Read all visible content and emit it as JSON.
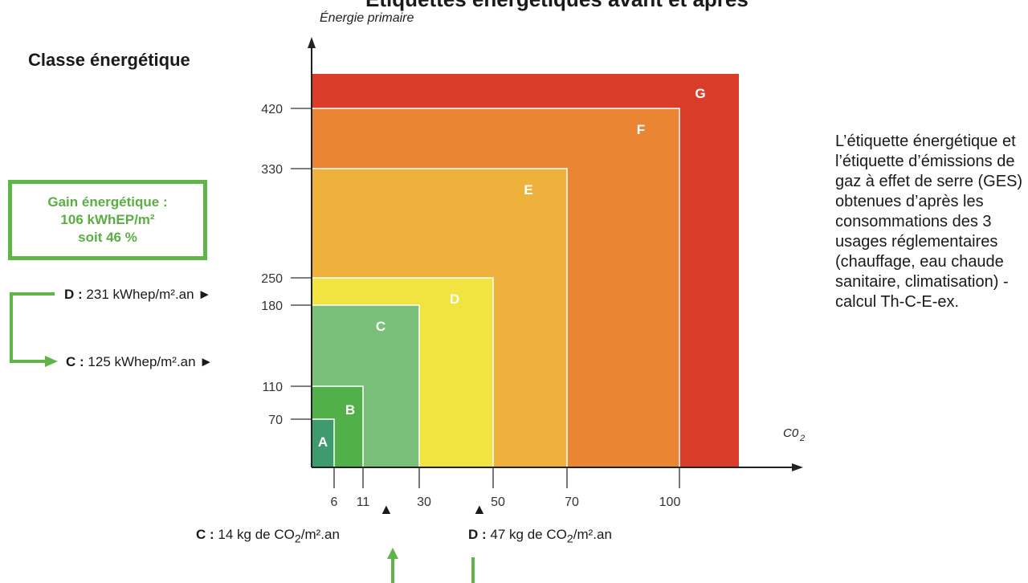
{
  "header": {
    "title_fragment": "Étiquettes énergétiques avant et après",
    "classe_label": "Classe énergétique"
  },
  "gain_box": {
    "line1": "Gain énergétique :",
    "line2": "106 kWhEP/m²",
    "line3": "soit 46 %"
  },
  "energy_before": {
    "class": "D :",
    "value": "231 kWhep/m².an ►"
  },
  "energy_after": {
    "class": "C :",
    "value": "125 kWhep/m².an ►"
  },
  "ges_after": {
    "class": "C :",
    "value_prefix": "14 kg de CO",
    "sub": "2",
    "value_suffix": "/m².an",
    "marker": "▲"
  },
  "ges_before": {
    "class": "D :",
    "value_prefix": "47 kg de CO",
    "sub": "2",
    "value_suffix": "/m².an",
    "marker": "▲"
  },
  "side_text": "L’étiquette énergétique et l’étiquette d’émissions de gaz à effet de serre (GES) obtenues d’après les consommations des 3 usages réglementaires (chauffage, eau chaude sanitaire, climatisation) - calcul Th-C-E-ex.",
  "colors": {
    "A": "#3f9a6d",
    "B": "#52b04a",
    "C": "#7bc07a",
    "D": "#f2e440",
    "E": "#eeb23c",
    "F": "#ea8533",
    "G": "#d93c28",
    "arrow_green": "#5fb548"
  },
  "chart_data": {
    "type": "nested-squares",
    "ylabel": "Énergie primaire",
    "xlabel": "CO2",
    "yticks": [
      70,
      110,
      180,
      250,
      330,
      420
    ],
    "xticks": [
      6,
      11,
      30,
      50,
      70,
      100
    ],
    "classes": [
      {
        "label": "A",
        "y_max": 70,
        "x_max": 6
      },
      {
        "label": "B",
        "y_max": 110,
        "x_max": 11
      },
      {
        "label": "C",
        "y_max": 180,
        "x_max": 30
      },
      {
        "label": "D",
        "y_max": 250,
        "x_max": 50
      },
      {
        "label": "E",
        "y_max": 330,
        "x_max": 70
      },
      {
        "label": "F",
        "y_max": 420,
        "x_max": 100
      },
      {
        "label": "G",
        "y_max": null,
        "x_max": null
      }
    ],
    "markers": {
      "energy_before": 231,
      "energy_after": 125,
      "co2_after": 14,
      "co2_before": 47
    }
  }
}
